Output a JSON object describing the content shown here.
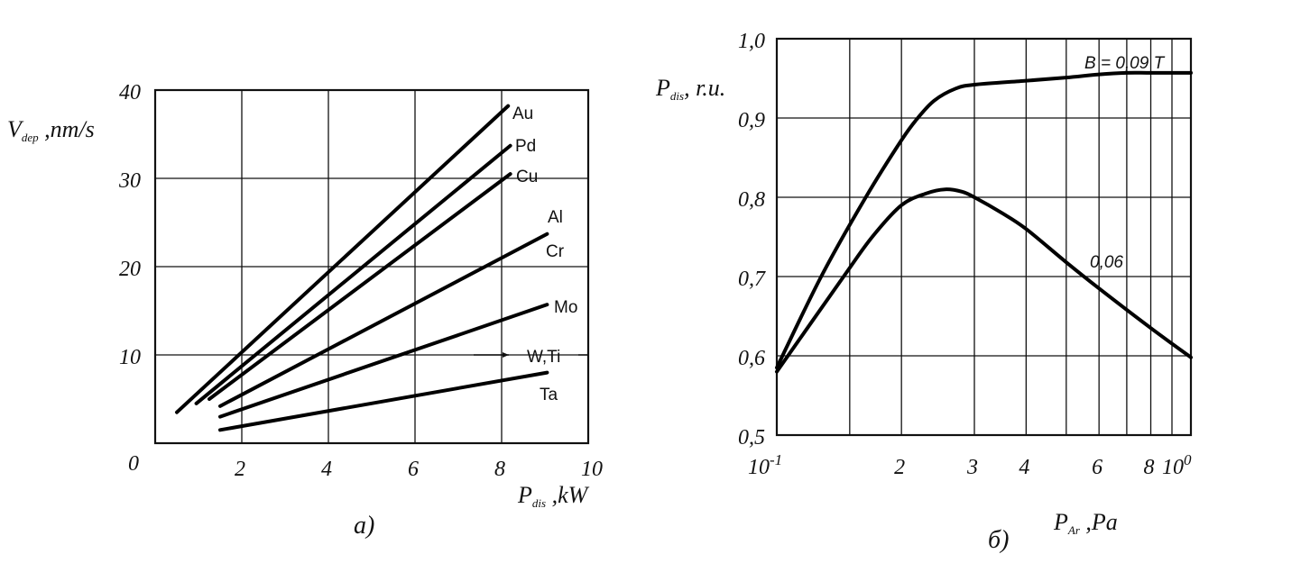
{
  "chart_data": [
    {
      "type": "line",
      "caption": "а)",
      "ylabel": {
        "main": "V",
        "sub": "dep",
        "rest": " ,nm/s"
      },
      "xlabel": {
        "main": "P",
        "sub": "dis",
        "rest": " ,kW"
      },
      "xlim": [
        0,
        10
      ],
      "ylim": [
        0,
        40
      ],
      "x_ticks": [
        "0",
        "2",
        "4",
        "6",
        "8",
        "10"
      ],
      "x_tick_values": [
        0,
        2,
        4,
        6,
        8,
        10
      ],
      "y_ticks": [
        "10",
        "20",
        "30",
        "40"
      ],
      "y_tick_values": [
        10,
        20,
        30,
        40
      ],
      "grid": true,
      "series": [
        {
          "name": "Au",
          "x": [
            0.5,
            8.15
          ],
          "y": [
            3.5,
            38.2
          ]
        },
        {
          "name": "Pd",
          "x": [
            0.95,
            8.2
          ],
          "y": [
            4.5,
            33.7
          ]
        },
        {
          "name": "Cu",
          "x": [
            1.25,
            8.2
          ],
          "y": [
            5.0,
            30.5
          ]
        },
        {
          "name": "Al, Cr",
          "x": [
            1.5,
            9.05
          ],
          "y": [
            4.2,
            23.7
          ]
        },
        {
          "name": "Mo",
          "x": [
            1.5,
            9.05
          ],
          "y": [
            3.0,
            15.7
          ]
        },
        {
          "name": "Ta",
          "x": [
            1.5,
            9.05
          ],
          "y": [
            1.5,
            8.0
          ]
        }
      ],
      "labels": {
        "au": "Au",
        "pd": "Pd",
        "cu": "Cu",
        "al": "Al",
        "cr": "Cr",
        "mo": "Mo",
        "wti": "W,Ti",
        "ta": "Ta"
      },
      "wti_arrow_value": 10
    },
    {
      "type": "line",
      "caption": "б)",
      "ylabel": {
        "main": "P",
        "sub": "dis",
        "rest": ", r.u."
      },
      "xlabel": {
        "main": "P",
        "sub": "Ar",
        "rest": " ,Pa"
      },
      "x_scale": "log",
      "xlim": [
        0.1,
        1.0
      ],
      "ylim": [
        0.5,
        1.0
      ],
      "x_ticks": [
        {
          "label": "10",
          "sup": "-1",
          "value": 0.1
        },
        {
          "label": "2",
          "value": 0.2
        },
        {
          "label": "3",
          "value": 0.3
        },
        {
          "label": "4",
          "value": 0.4
        },
        {
          "label": "6",
          "value": 0.6
        },
        {
          "label": "8",
          "value": 0.8
        },
        {
          "label": "10",
          "sup": "0",
          "value": 1.0
        }
      ],
      "x_grid_values": [
        0.15,
        0.2,
        0.3,
        0.4,
        0.5,
        0.6,
        0.7,
        0.8,
        0.9
      ],
      "y_ticks": [
        "0,5",
        "0,6",
        "0,7",
        "0,8",
        "0,9",
        "1,0"
      ],
      "y_tick_values": [
        0.5,
        0.6,
        0.7,
        0.8,
        0.9,
        1.0
      ],
      "grid": true,
      "series": [
        {
          "name": "B = 0,09 T",
          "x": [
            0.1,
            0.128,
            0.164,
            0.2,
            0.219,
            0.24,
            0.27,
            0.3,
            0.4,
            0.5,
            0.6,
            0.7,
            0.8,
            1.0
          ],
          "y": [
            0.585,
            0.7,
            0.8,
            0.872,
            0.9,
            0.922,
            0.937,
            0.942,
            0.947,
            0.951,
            0.955,
            0.957,
            0.957,
            0.957
          ]
        },
        {
          "name": "0,06",
          "x": [
            0.1,
            0.145,
            0.17,
            0.2,
            0.23,
            0.255,
            0.28,
            0.3,
            0.35,
            0.4,
            0.5,
            0.6,
            0.8,
            1.0
          ],
          "y": [
            0.58,
            0.7,
            0.75,
            0.79,
            0.805,
            0.81,
            0.807,
            0.8,
            0.78,
            0.76,
            0.718,
            0.685,
            0.635,
            0.598
          ]
        }
      ]
    }
  ]
}
